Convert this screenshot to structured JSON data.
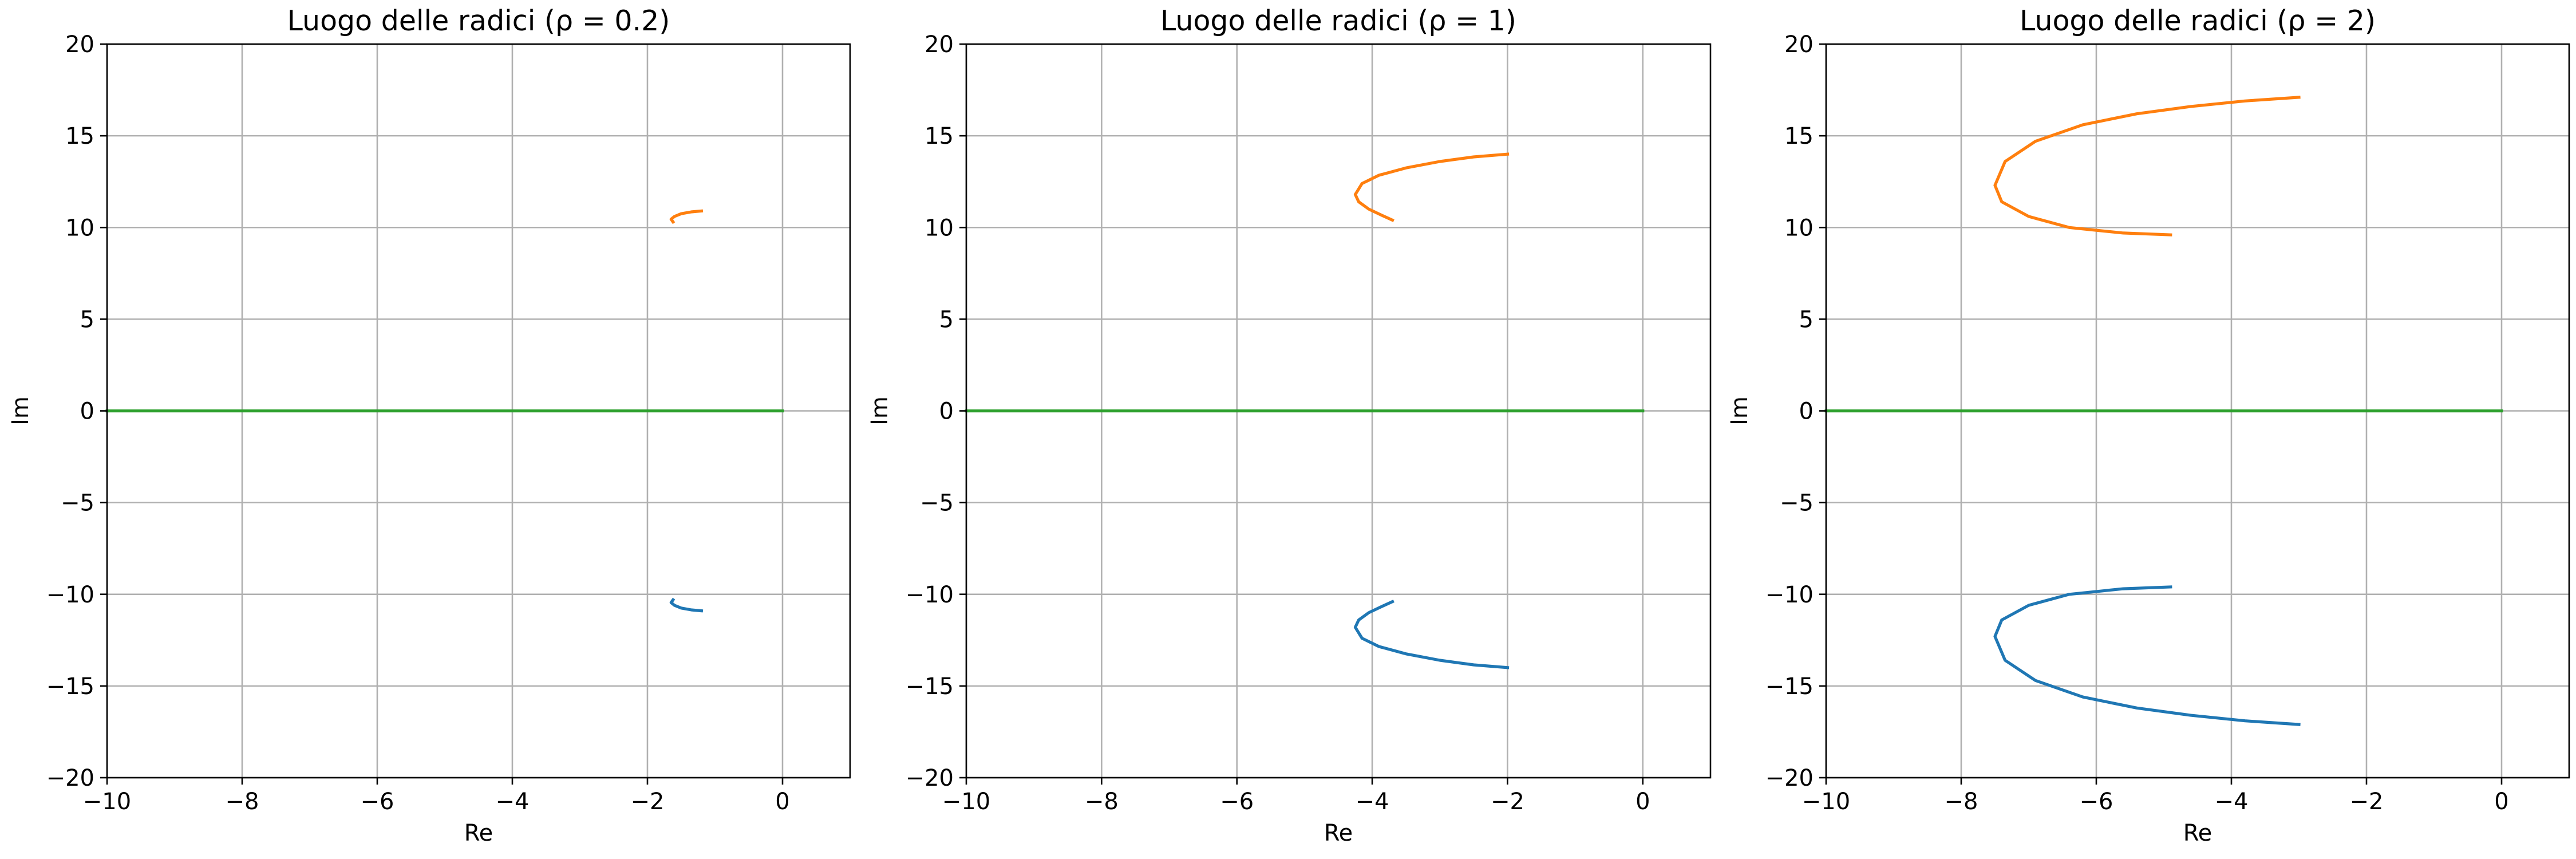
{
  "chart_data": [
    {
      "type": "line",
      "title": "Luogo delle radici (ρ = 0.2)",
      "xlabel": "Re",
      "ylabel": "Im",
      "xlim": [
        -10,
        1
      ],
      "ylim": [
        -20,
        20
      ],
      "xticks": [
        -10,
        -8,
        -6,
        -4,
        -2,
        0
      ],
      "yticks": [
        -20,
        -15,
        -10,
        -5,
        0,
        5,
        10,
        15,
        20
      ],
      "xtick_labels": [
        "−10",
        "−8",
        "−6",
        "−4",
        "−2",
        "0"
      ],
      "ytick_labels": [
        "−20",
        "−15",
        "−10",
        "−5",
        "0",
        "5",
        "10",
        "15",
        "20"
      ],
      "grid": true,
      "series": [
        {
          "color": "#1f77b4",
          "x": [
            -1.2,
            -1.35,
            -1.5,
            -1.6,
            -1.65,
            -1.62
          ],
          "y": [
            -10.9,
            -10.85,
            -10.75,
            -10.6,
            -10.45,
            -10.3
          ]
        },
        {
          "color": "#ff7f0e",
          "x": [
            -1.2,
            -1.35,
            -1.5,
            -1.6,
            -1.65,
            -1.62
          ],
          "y": [
            10.9,
            10.85,
            10.75,
            10.6,
            10.45,
            10.3
          ]
        },
        {
          "color": "#2ca02c",
          "x": [
            -10,
            0
          ],
          "y": [
            0,
            0
          ]
        }
      ]
    },
    {
      "type": "line",
      "title": "Luogo delle radici (ρ = 1)",
      "xlabel": "Re",
      "ylabel": "Im",
      "xlim": [
        -10,
        1
      ],
      "ylim": [
        -20,
        20
      ],
      "xticks": [
        -10,
        -8,
        -6,
        -4,
        -2,
        0
      ],
      "yticks": [
        -20,
        -15,
        -10,
        -5,
        0,
        5,
        10,
        15,
        20
      ],
      "xtick_labels": [
        "−10",
        "−8",
        "−6",
        "−4",
        "−2",
        "0"
      ],
      "ytick_labels": [
        "−20",
        "−15",
        "−10",
        "−5",
        "0",
        "5",
        "10",
        "15",
        "20"
      ],
      "grid": true,
      "series": [
        {
          "color": "#1f77b4",
          "x": [
            -2.0,
            -2.5,
            -3.0,
            -3.5,
            -3.9,
            -4.15,
            -4.25,
            -4.2,
            -4.05,
            -3.85,
            -3.7
          ],
          "y": [
            -14.0,
            -13.85,
            -13.6,
            -13.25,
            -12.85,
            -12.4,
            -11.8,
            -11.4,
            -11.0,
            -10.65,
            -10.4
          ]
        },
        {
          "color": "#ff7f0e",
          "x": [
            -2.0,
            -2.5,
            -3.0,
            -3.5,
            -3.9,
            -4.15,
            -4.25,
            -4.2,
            -4.05,
            -3.85,
            -3.7
          ],
          "y": [
            14.0,
            13.85,
            13.6,
            13.25,
            12.85,
            12.4,
            11.8,
            11.4,
            11.0,
            10.65,
            10.4
          ]
        },
        {
          "color": "#2ca02c",
          "x": [
            -10,
            0
          ],
          "y": [
            0,
            0
          ]
        }
      ]
    },
    {
      "type": "line",
      "title": "Luogo delle radici (ρ = 2)",
      "xlabel": "Re",
      "ylabel": "Im",
      "xlim": [
        -10,
        1
      ],
      "ylim": [
        -20,
        20
      ],
      "xticks": [
        -10,
        -8,
        -6,
        -4,
        -2,
        0
      ],
      "yticks": [
        -20,
        -15,
        -10,
        -5,
        0,
        5,
        10,
        15,
        20
      ],
      "xtick_labels": [
        "−10",
        "−8",
        "−6",
        "−4",
        "−2",
        "0"
      ],
      "ytick_labels": [
        "−20",
        "−15",
        "−10",
        "−5",
        "0",
        "5",
        "10",
        "15",
        "20"
      ],
      "grid": true,
      "series": [
        {
          "color": "#1f77b4",
          "x": [
            -3.0,
            -3.8,
            -4.6,
            -5.4,
            -6.2,
            -6.9,
            -7.35,
            -7.5,
            -7.4,
            -7.0,
            -6.4,
            -5.6,
            -4.9
          ],
          "y": [
            -17.1,
            -16.9,
            -16.6,
            -16.2,
            -15.6,
            -14.7,
            -13.6,
            -12.3,
            -11.4,
            -10.6,
            -10.0,
            -9.7,
            -9.6
          ]
        },
        {
          "color": "#ff7f0e",
          "x": [
            -3.0,
            -3.8,
            -4.6,
            -5.4,
            -6.2,
            -6.9,
            -7.35,
            -7.5,
            -7.4,
            -7.0,
            -6.4,
            -5.6,
            -4.9
          ],
          "y": [
            17.1,
            16.9,
            16.6,
            16.2,
            15.6,
            14.7,
            13.6,
            12.3,
            11.4,
            10.6,
            10.0,
            9.7,
            9.6
          ]
        },
        {
          "color": "#2ca02c",
          "x": [
            -10,
            0
          ],
          "y": [
            0,
            0
          ]
        }
      ]
    }
  ]
}
